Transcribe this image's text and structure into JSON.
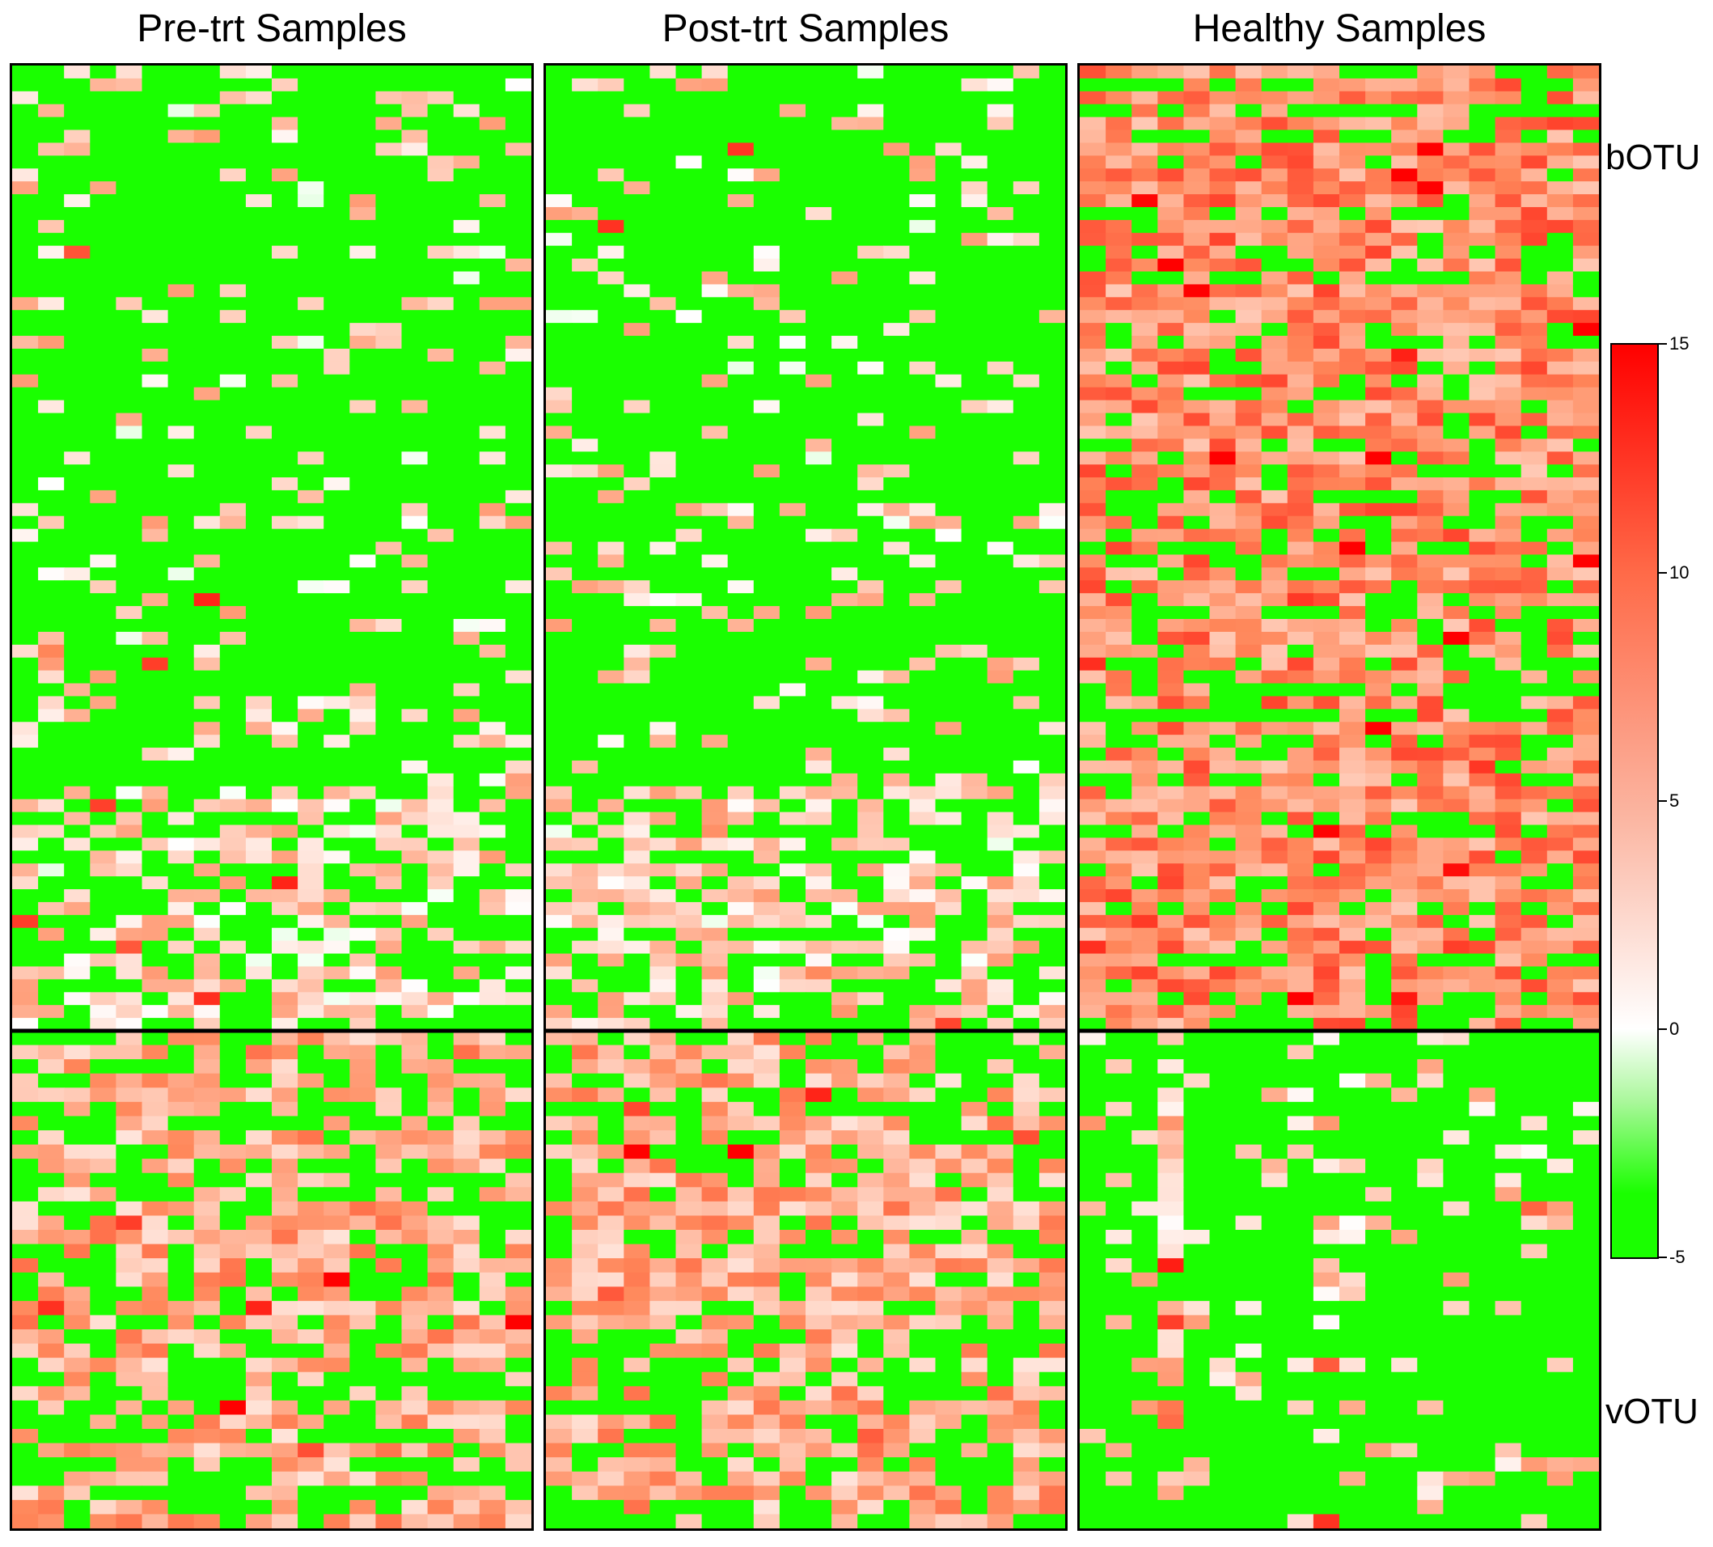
{
  "chart_data": {
    "type": "heatmap",
    "panels": [
      {
        "title": "Pre-trt Samples",
        "group": "pre",
        "seed": 11
      },
      {
        "title": "Post-trt Samples",
        "group": "post",
        "seed": 29
      },
      {
        "title": "Healthy Samples",
        "group": "healthy",
        "seed": 53
      }
    ],
    "row_groups": [
      {
        "label": "bOTU"
      },
      {
        "label": "vOTU"
      }
    ],
    "colorbar": {
      "min": -5,
      "max": 15,
      "ticks": [
        "15",
        "10",
        "5",
        "0",
        "-5"
      ],
      "colors": {
        "low": "#1aff00",
        "mid": "#ffffff",
        "high": "#ff0000"
      }
    }
  }
}
